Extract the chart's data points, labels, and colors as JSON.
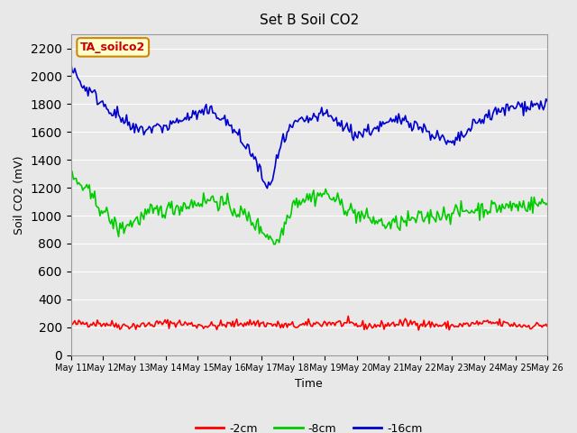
{
  "title": "Set B Soil CO2",
  "xlabel": "Time",
  "ylabel": "Soil CO2 (mV)",
  "annotation": "TA_soilco2",
  "annotation_bg": "#ffffcc",
  "annotation_border": "#cc8800",
  "ylim": [
    0,
    2300
  ],
  "yticks": [
    0,
    200,
    400,
    600,
    800,
    1000,
    1200,
    1400,
    1600,
    1800,
    2000,
    2200
  ],
  "background_color": "#e8e8e8",
  "plot_bg": "#e8e8e8",
  "grid_color": "#ffffff",
  "legend_labels": [
    "-2cm",
    "-8cm",
    "-16cm"
  ],
  "legend_colors": [
    "#ff0000",
    "#00cc00",
    "#0000cc"
  ],
  "line_width": 1.2,
  "n_points": 360,
  "xtick_labels": [
    "May 11",
    "May 12",
    "May 13",
    "May 14",
    "May 15",
    "May 16",
    "May 17",
    "May 18",
    "May 19",
    "May 20",
    "May 21",
    "May 22",
    "May 23",
    "May 24",
    "May 25",
    "May 26"
  ]
}
